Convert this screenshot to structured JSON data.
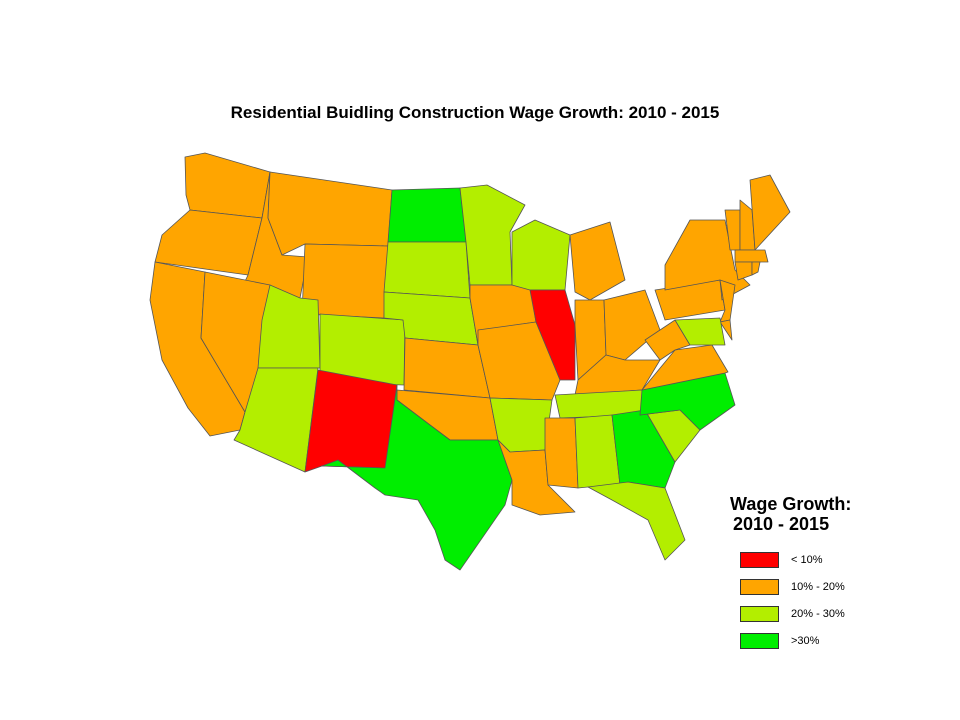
{
  "title": "Residential Buidling Construction Wage Growth: 2010 - 2015",
  "legend": {
    "title_lines": [
      "Wage Growth:",
      "2010 - 2015"
    ],
    "items": [
      {
        "label": "< 10%",
        "color": "#ff0000"
      },
      {
        "label": "10% - 20%",
        "color": "#ffa500"
      },
      {
        "label": "20% - 30%",
        "color": "#b3ee00"
      },
      {
        "label": ">30%",
        "color": "#00ee00"
      }
    ]
  },
  "chart_data": {
    "type": "choropleth",
    "categories": [
      "< 10%",
      "10% - 20%",
      "20% - 30%",
      ">30%"
    ],
    "states": {
      "WA": "10% - 20%",
      "OR": "10% - 20%",
      "CA": "10% - 20%",
      "ID": "10% - 20%",
      "NV": "10% - 20%",
      "MT": "10% - 20%",
      "WY": "10% - 20%",
      "UT": "20% - 30%",
      "CO": "20% - 30%",
      "AZ": "20% - 30%",
      "NM": "< 10%",
      "ND": ">30%",
      "SD": "20% - 30%",
      "NE": "20% - 30%",
      "KS": "10% - 20%",
      "OK": "10% - 20%",
      "TX": ">30%",
      "MN": "20% - 30%",
      "IA": "10% - 20%",
      "MO": "10% - 20%",
      "AR": "20% - 30%",
      "LA": "10% - 20%",
      "WI": "20% - 30%",
      "IL": "< 10%",
      "MI": "10% - 20%",
      "IN": "10% - 20%",
      "OH": "10% - 20%",
      "KY": "10% - 20%",
      "TN": "20% - 30%",
      "MS": "10% - 20%",
      "AL": "20% - 30%",
      "GA": ">30%",
      "FL": "20% - 30%",
      "SC": "20% - 30%",
      "NC": ">30%",
      "VA": "10% - 20%",
      "WV": "10% - 20%",
      "PA": "10% - 20%",
      "NY": "10% - 20%",
      "NJ": "10% - 20%",
      "DE": "10% - 20%",
      "MD": "20% - 30%",
      "VT": "10% - 20%",
      "NH": "10% - 20%",
      "ME": "10% - 20%",
      "MA": "10% - 20%",
      "CT": "10% - 20%",
      "RI": "10% - 20%"
    }
  }
}
